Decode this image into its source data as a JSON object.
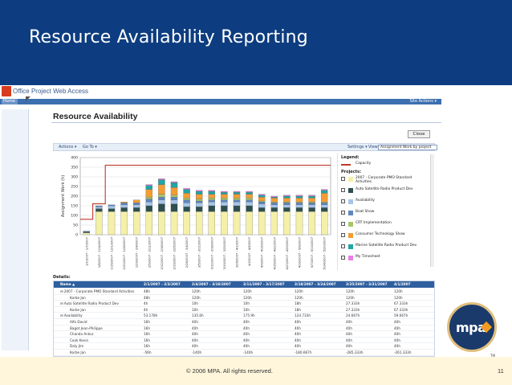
{
  "slide": {
    "title": "Resource Availability Reporting",
    "footer_copyright": "© 2006 MPA. All rights reserved.",
    "page_number": "11",
    "logo_text": "mpa",
    "logo_tm": "TM"
  },
  "app": {
    "name": "Office Project Web Access",
    "home_tab": "Home",
    "site_actions": "Site Actions ▾"
  },
  "page": {
    "title": "Resource Availability",
    "close_button": "Close",
    "toolbar": {
      "actions": "Actions ▾",
      "go_to": "Go To ▾",
      "settings": "Settings ▾",
      "view_label": "View:",
      "view_value": "Assignment Work by project"
    },
    "details_label": "Details:"
  },
  "colors": {
    "capacity": "#c0392b",
    "accent": "#0d3d80",
    "footer_bg": "#fff6dc"
  },
  "legend": {
    "title": "Legend:",
    "capacity": "Capacity",
    "projects_label": "Projects:",
    "items": [
      {
        "label": "2007 - Corporate PMO Standard Activities",
        "color": "#f5f0a8"
      },
      {
        "label": "Auto Satellite Radio Product Dev",
        "color": "#2f4f4f"
      },
      {
        "label": "Availability",
        "color": "#a7c5e8"
      },
      {
        "label": "Boat Show",
        "color": "#5e86c1"
      },
      {
        "label": "CRT Implementation",
        "color": "#a8c66a"
      },
      {
        "label": "Consumer Technology Show",
        "color": "#f39c34"
      },
      {
        "label": "Marine Satellite Radio Product Dev",
        "color": "#1fa5a5"
      },
      {
        "label": "My Timesheet",
        "color": "#e77fe4"
      }
    ]
  },
  "chart_data": {
    "type": "bar",
    "ylabel": "Assignment Work (h)",
    "ylim": [
      0,
      400
    ],
    "yticks": [
      0,
      50,
      100,
      150,
      200,
      250,
      300,
      350,
      400
    ],
    "categories": [
      "1/1/2007 - 1/7/2007",
      "1/8/2007 - 1/14/2007",
      "1/15/2007 - 1/21/2007",
      "1/22/2007 - 1/28/2007",
      "1/29/2007 - 2/4/2007",
      "2/5/2007 - 2/11/2007",
      "2/12/2007 - 2/18/2007",
      "2/19/2007 - 2/25/2007",
      "2/26/2007 - 3/4/2007",
      "3/5/2007 - 3/11/2007",
      "3/12/2007 - 3/18/2007",
      "3/19/2007 - 3/25/2007",
      "3/26/2007 - 4/1/2007",
      "4/2/2007 - 4/8/2007",
      "4/9/2007 - 4/15/2007",
      "4/16/2007 - 4/22/2007",
      "4/23/2007 - 4/29/2007",
      "4/30/2007 - 5/6/2007",
      "5/7/2007 - 5/13/2007",
      "5/14/2007 - 5/20/2007"
    ],
    "capacity": [
      80,
      160,
      360,
      360,
      360,
      360,
      360,
      360,
      360,
      360,
      360,
      360,
      360,
      360,
      360,
      360,
      360,
      360,
      360,
      360
    ],
    "series": [
      {
        "name": "2007 - Corporate PMO Standard Activities",
        "color": "#f5f0a8",
        "values": [
          10,
          120,
          120,
          120,
          120,
          120,
          120,
          120,
          120,
          120,
          120,
          120,
          120,
          120,
          120,
          120,
          120,
          120,
          120,
          120
        ]
      },
      {
        "name": "Auto Satellite Radio Product Dev",
        "color": "#2f4f4f",
        "values": [
          5,
          15,
          15,
          20,
          20,
          30,
          40,
          40,
          25,
          25,
          30,
          30,
          30,
          30,
          20,
          20,
          20,
          20,
          20,
          20
        ]
      },
      {
        "name": "Availability",
        "color": "#a7c5e8",
        "values": [
          5,
          10,
          15,
          15,
          15,
          20,
          20,
          20,
          20,
          20,
          20,
          20,
          20,
          20,
          20,
          15,
          15,
          15,
          15,
          15
        ]
      },
      {
        "name": "Boat Show",
        "color": "#5e86c1",
        "values": [
          0,
          5,
          5,
          10,
          10,
          15,
          15,
          15,
          15,
          10,
          10,
          10,
          10,
          10,
          10,
          10,
          10,
          10,
          10,
          10
        ]
      },
      {
        "name": "CRT Implementation",
        "color": "#a8c66a",
        "values": [
          0,
          0,
          0,
          0,
          0,
          10,
          15,
          10,
          10,
          10,
          10,
          10,
          10,
          10,
          5,
          5,
          5,
          5,
          5,
          5
        ]
      },
      {
        "name": "Consumer Technology Show",
        "color": "#f39c34",
        "values": [
          0,
          0,
          0,
          5,
          15,
          40,
          50,
          40,
          25,
          25,
          20,
          20,
          20,
          20,
          20,
          20,
          20,
          20,
          20,
          45
        ]
      },
      {
        "name": "Marine Satellite Radio Product Dev",
        "color": "#1fa5a5",
        "values": [
          0,
          0,
          0,
          0,
          0,
          20,
          25,
          25,
          20,
          15,
          15,
          10,
          10,
          10,
          10,
          5,
          10,
          10,
          10,
          15
        ]
      },
      {
        "name": "My Timesheet",
        "color": "#e77fe4",
        "values": [
          0,
          0,
          0,
          0,
          0,
          5,
          5,
          5,
          5,
          5,
          5,
          5,
          5,
          5,
          5,
          5,
          5,
          5,
          5,
          5
        ]
      }
    ]
  },
  "details": {
    "columns": [
      "Name ▲",
      "2/1/2007 - 2/3/2007",
      "2/4/2007 - 3/10/2007",
      "3/11/2007 - 3/17/2007",
      "3/18/2007 - 3/24/2007",
      "3/25/2007 - 3/31/2007",
      "4/1/2007"
    ],
    "rows": [
      [
        "⊟ 2007 - Corporate PMO Standard Activities",
        "48h",
        "120h",
        "120h",
        "120h",
        "120h",
        "120h"
      ],
      [
        "Korbe Jan",
        "48h",
        "120h",
        "120h",
        "120h",
        "120h",
        "120h"
      ],
      [
        "⊟ Auto Satellite Radio Product Dev",
        "4h",
        "10h",
        "10h",
        "18h",
        "27.333h",
        "67.333h"
      ],
      [
        "Korbe Jan",
        "4h",
        "10h",
        "10h",
        "18h",
        "27.333h",
        "67.333h"
      ],
      [
        "⊟ Availability",
        "53.178h",
        "135.6h",
        "175.9h",
        "124.733h",
        "24.667h",
        "59.667h"
      ],
      [
        "Alfo David",
        "16h",
        "40h",
        "40h",
        "40h",
        "40h",
        "40h"
      ],
      [
        "Baget Jean-Philippe",
        "16h",
        "40h",
        "40h",
        "40h",
        "40h",
        "40h"
      ],
      [
        "Chanda Ankur",
        "16h",
        "40h",
        "40h",
        "40h",
        "40h",
        "40h"
      ],
      [
        "Cook Kevin",
        "16h",
        "40h",
        "40h",
        "40h",
        "40h",
        "40h"
      ],
      [
        "Daly Jim",
        "16h",
        "40h",
        "40h",
        "40h",
        "40h",
        "40h"
      ],
      [
        "Korbe Jan",
        "-56h",
        "-140h",
        "-140h",
        "-180.667h",
        "-285.333h",
        "-261.333h"
      ]
    ]
  }
}
